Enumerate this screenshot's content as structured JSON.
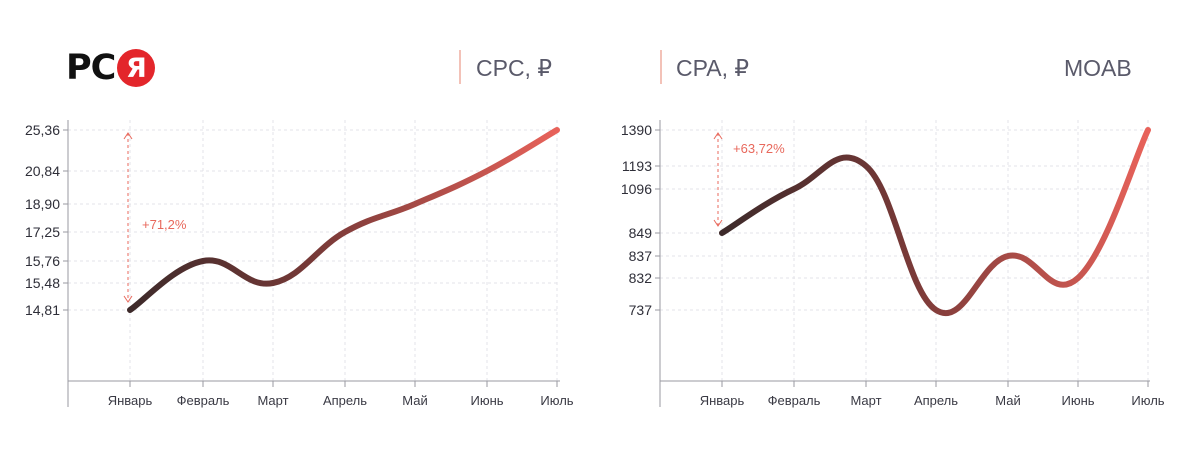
{
  "logo": {
    "text": "PC",
    "badge": "Я"
  },
  "headers": {
    "cpc": "CPC, ₽",
    "cpa": "CPA, ₽",
    "brand": "MOAB"
  },
  "colors": {
    "line_start": "#3d2a2a",
    "line_end": "#e8625a",
    "accent": "#e8685c",
    "axis": "#9a9aa2",
    "grid": "#e3e3e8"
  },
  "chart_data": [
    {
      "type": "line",
      "title": "CPC, ₽",
      "categories": [
        "Январь",
        "Февраль",
        "Март",
        "Апрель",
        "Май",
        "Июнь",
        "Июль"
      ],
      "values": [
        14.81,
        15.76,
        15.48,
        17.25,
        18.9,
        20.84,
        25.36
      ],
      "y_ticks": [
        "25,36",
        "20,84",
        "18,90",
        "17,25",
        "15,76",
        "15,48",
        "14,81"
      ],
      "annotation": "+71,2%",
      "grid": true
    },
    {
      "type": "line",
      "title": "CPA, ₽",
      "categories": [
        "Январь",
        "Февраль",
        "Март",
        "Апрель",
        "Май",
        "Июнь",
        "Июль"
      ],
      "values": [
        849,
        1096,
        1193,
        737,
        837,
        832,
        1390
      ],
      "y_ticks": [
        "1390",
        "1193",
        "1096",
        "849",
        "837",
        "832",
        "737"
      ],
      "annotation": "+63,72%",
      "grid": true
    }
  ]
}
